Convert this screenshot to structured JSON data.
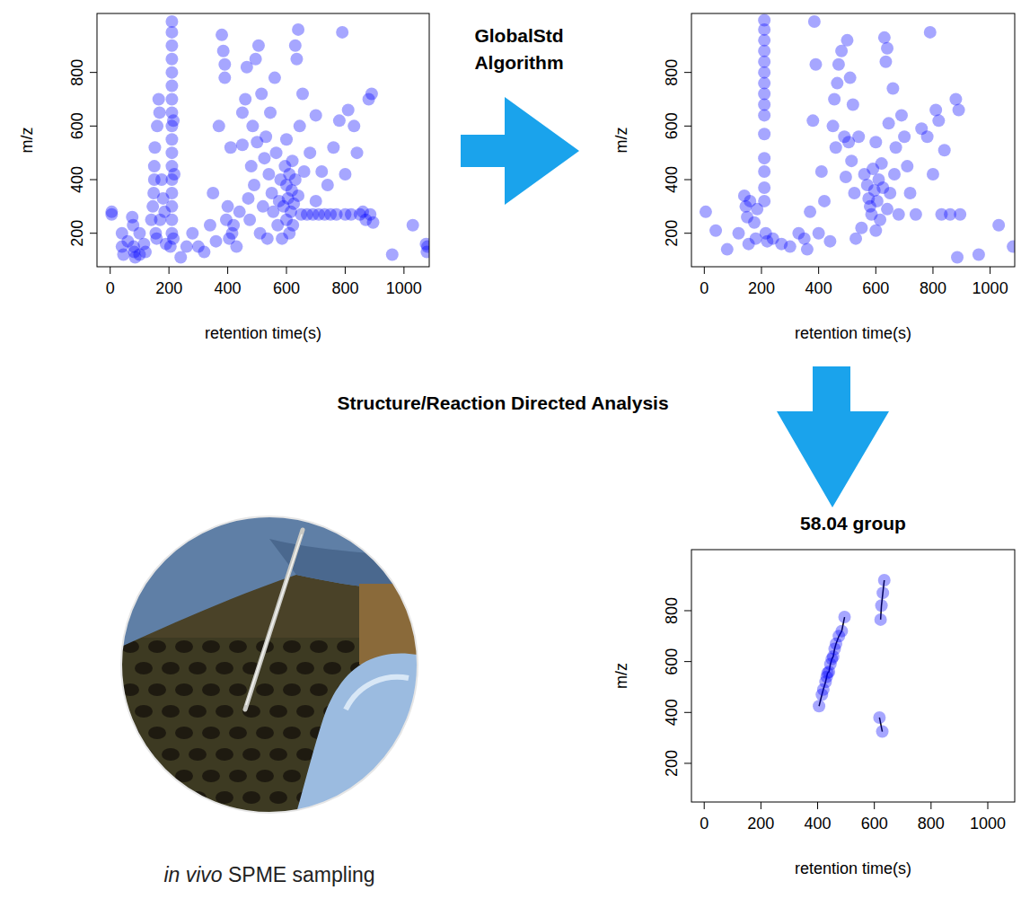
{
  "chart_data": [
    {
      "type": "scatter",
      "x_label": "retention time(s)",
      "y_label": "m/z",
      "xlim": [
        -45,
        1086
      ],
      "ylim": [
        75,
        1020
      ],
      "xticks": [
        0,
        200,
        400,
        600,
        800,
        1000
      ],
      "yticks": [
        200,
        400,
        600,
        800
      ],
      "color": "#0000ff",
      "marker": "circle",
      "series": [
        {
          "x": [
            5,
            5,
            40,
            40,
            45,
            60,
            75,
            78,
            80,
            82,
            85,
            100,
            100,
            115,
            120,
            140,
            145,
            148,
            150,
            150,
            152,
            155,
            158,
            160,
            165,
            168,
            170,
            175,
            180,
            185,
            190,
            205,
            210,
            210,
            210,
            210,
            210,
            210,
            210,
            210,
            210,
            210,
            210,
            210,
            210,
            210,
            210,
            210,
            210,
            215,
            215,
            218,
            240,
            260,
            280,
            300,
            320,
            340,
            350,
            360,
            370,
            380,
            385,
            390,
            390,
            395,
            400,
            405,
            410,
            415,
            420,
            430,
            440,
            450,
            450,
            460,
            465,
            470,
            475,
            480,
            485,
            490,
            495,
            500,
            505,
            510,
            515,
            520,
            525,
            530,
            535,
            540,
            545,
            550,
            555,
            560,
            565,
            570,
            575,
            580,
            585,
            590,
            595,
            600,
            600,
            600,
            605,
            610,
            610,
            615,
            618,
            620,
            622,
            625,
            630,
            630,
            635,
            640,
            640,
            645,
            650,
            655,
            660,
            670,
            680,
            690,
            700,
            700,
            710,
            720,
            730,
            740,
            750,
            760,
            770,
            780,
            790,
            800,
            800,
            810,
            820,
            830,
            840,
            850,
            860,
            870,
            880,
            885,
            890,
            895,
            960,
            1030,
            1075,
            1078,
            1080
          ],
          "values": [
            280,
            270,
            200,
            150,
            120,
            170,
            260,
            230,
            150,
            130,
            110,
            200,
            120,
            160,
            130,
            250,
            300,
            350,
            400,
            450,
            520,
            200,
            180,
            600,
            700,
            650,
            250,
            400,
            330,
            280,
            160,
            150,
            200,
            250,
            300,
            350,
            400,
            450,
            500,
            550,
            600,
            650,
            700,
            750,
            800,
            850,
            900,
            950,
            990,
            180,
            620,
            420,
            110,
            150,
            200,
            150,
            130,
            230,
            350,
            170,
            600,
            940,
            880,
            830,
            780,
            250,
            300,
            180,
            520,
            200,
            230,
            150,
            280,
            530,
            650,
            700,
            820,
            330,
            250,
            450,
            600,
            380,
            850,
            540,
            900,
            200,
            720,
            300,
            480,
            560,
            180,
            420,
            650,
            350,
            280,
            780,
            500,
            230,
            320,
            400,
            180,
            300,
            450,
            380,
            250,
            550,
            330,
            200,
            420,
            280,
            360,
            470,
            230,
            310,
            400,
            900,
            850,
            960,
            340,
            600,
            270,
            720,
            430,
            270,
            500,
            270,
            320,
            640,
            270,
            430,
            270,
            380,
            270,
            520,
            270,
            620,
            950,
            270,
            420,
            660,
            270,
            600,
            500,
            270,
            280,
            250,
            700,
            270,
            720,
            240,
            120,
            230,
            160,
            130,
            150
          ]
        }
      ]
    },
    {
      "type": "scatter",
      "x_label": "retention time(s)",
      "y_label": "m/z",
      "xlim": [
        -45,
        1086
      ],
      "ylim": [
        75,
        1020
      ],
      "xticks": [
        0,
        200,
        400,
        600,
        800,
        1000
      ],
      "yticks": [
        200,
        400,
        600,
        800
      ],
      "color": "#0000ff",
      "marker": "circle",
      "series": [
        {
          "x": [
            5,
            40,
            80,
            120,
            140,
            145,
            150,
            155,
            160,
            175,
            180,
            185,
            210,
            210,
            210,
            210,
            210,
            210,
            210,
            210,
            210,
            210,
            210,
            210,
            210,
            210,
            210,
            215,
            220,
            240,
            270,
            300,
            330,
            350,
            360,
            370,
            380,
            385,
            390,
            400,
            410,
            420,
            440,
            450,
            455,
            460,
            465,
            470,
            480,
            490,
            495,
            500,
            505,
            510,
            515,
            520,
            525,
            530,
            540,
            550,
            560,
            570,
            575,
            580,
            585,
            590,
            595,
            600,
            600,
            605,
            610,
            615,
            620,
            625,
            630,
            635,
            640,
            640,
            645,
            650,
            660,
            665,
            670,
            680,
            690,
            700,
            710,
            720,
            740,
            760,
            780,
            790,
            800,
            810,
            820,
            830,
            840,
            860,
            880,
            885,
            890,
            895,
            960,
            1030,
            1080
          ],
          "values": [
            280,
            210,
            140,
            200,
            340,
            300,
            260,
            160,
            320,
            240,
            180,
            290,
            995,
            960,
            920,
            880,
            840,
            800,
            760,
            720,
            680,
            640,
            570,
            480,
            430,
            370,
            320,
            200,
            170,
            180,
            160,
            150,
            200,
            180,
            140,
            280,
            620,
            990,
            830,
            200,
            430,
            320,
            170,
            600,
            700,
            520,
            760,
            830,
            880,
            560,
            410,
            920,
            540,
            780,
            470,
            680,
            350,
            180,
            560,
            220,
            420,
            380,
            330,
            300,
            270,
            440,
            360,
            210,
            540,
            320,
            400,
            250,
            460,
            370,
            930,
            840,
            890,
            290,
            610,
            350,
            740,
            420,
            520,
            270,
            640,
            560,
            450,
            350,
            270,
            590,
            560,
            950,
            420,
            660,
            620,
            270,
            510,
            270,
            700,
            110,
            660,
            270,
            120,
            230,
            150
          ]
        }
      ]
    },
    {
      "type": "line",
      "title": "58.04 group",
      "x_label": "retention time(s)",
      "y_label": "m/z",
      "xlim": [
        -45,
        1095
      ],
      "ylim": [
        48,
        1040
      ],
      "xticks": [
        0,
        200,
        400,
        600,
        800,
        1000
      ],
      "yticks": [
        200,
        400,
        600,
        800
      ],
      "color": "#0000ff",
      "marker": "circle",
      "line_style": "solid",
      "series": [
        {
          "x": [
            405,
            415,
            420,
            428,
            432,
            435,
            440,
            445,
            450,
            455,
            460,
            465,
            475,
            485,
            495
          ],
          "values": [
            425,
            470,
            490,
            520,
            540,
            555,
            560,
            590,
            610,
            620,
            650,
            670,
            700,
            720,
            775
          ]
        },
        {
          "x": [
            622,
            625,
            630,
            635
          ],
          "values": [
            765,
            820,
            870,
            920
          ]
        },
        {
          "x": [
            618,
            628
          ],
          "values": [
            380,
            325
          ]
        }
      ]
    }
  ],
  "diagram": {
    "arrow_1_label": "GlobalStd Algorithm",
    "arrow_2_label": "Structure/Reaction Directed Analysis",
    "photo_caption": {
      "italic": "in vivo",
      "text": "SPME sampling"
    }
  }
}
